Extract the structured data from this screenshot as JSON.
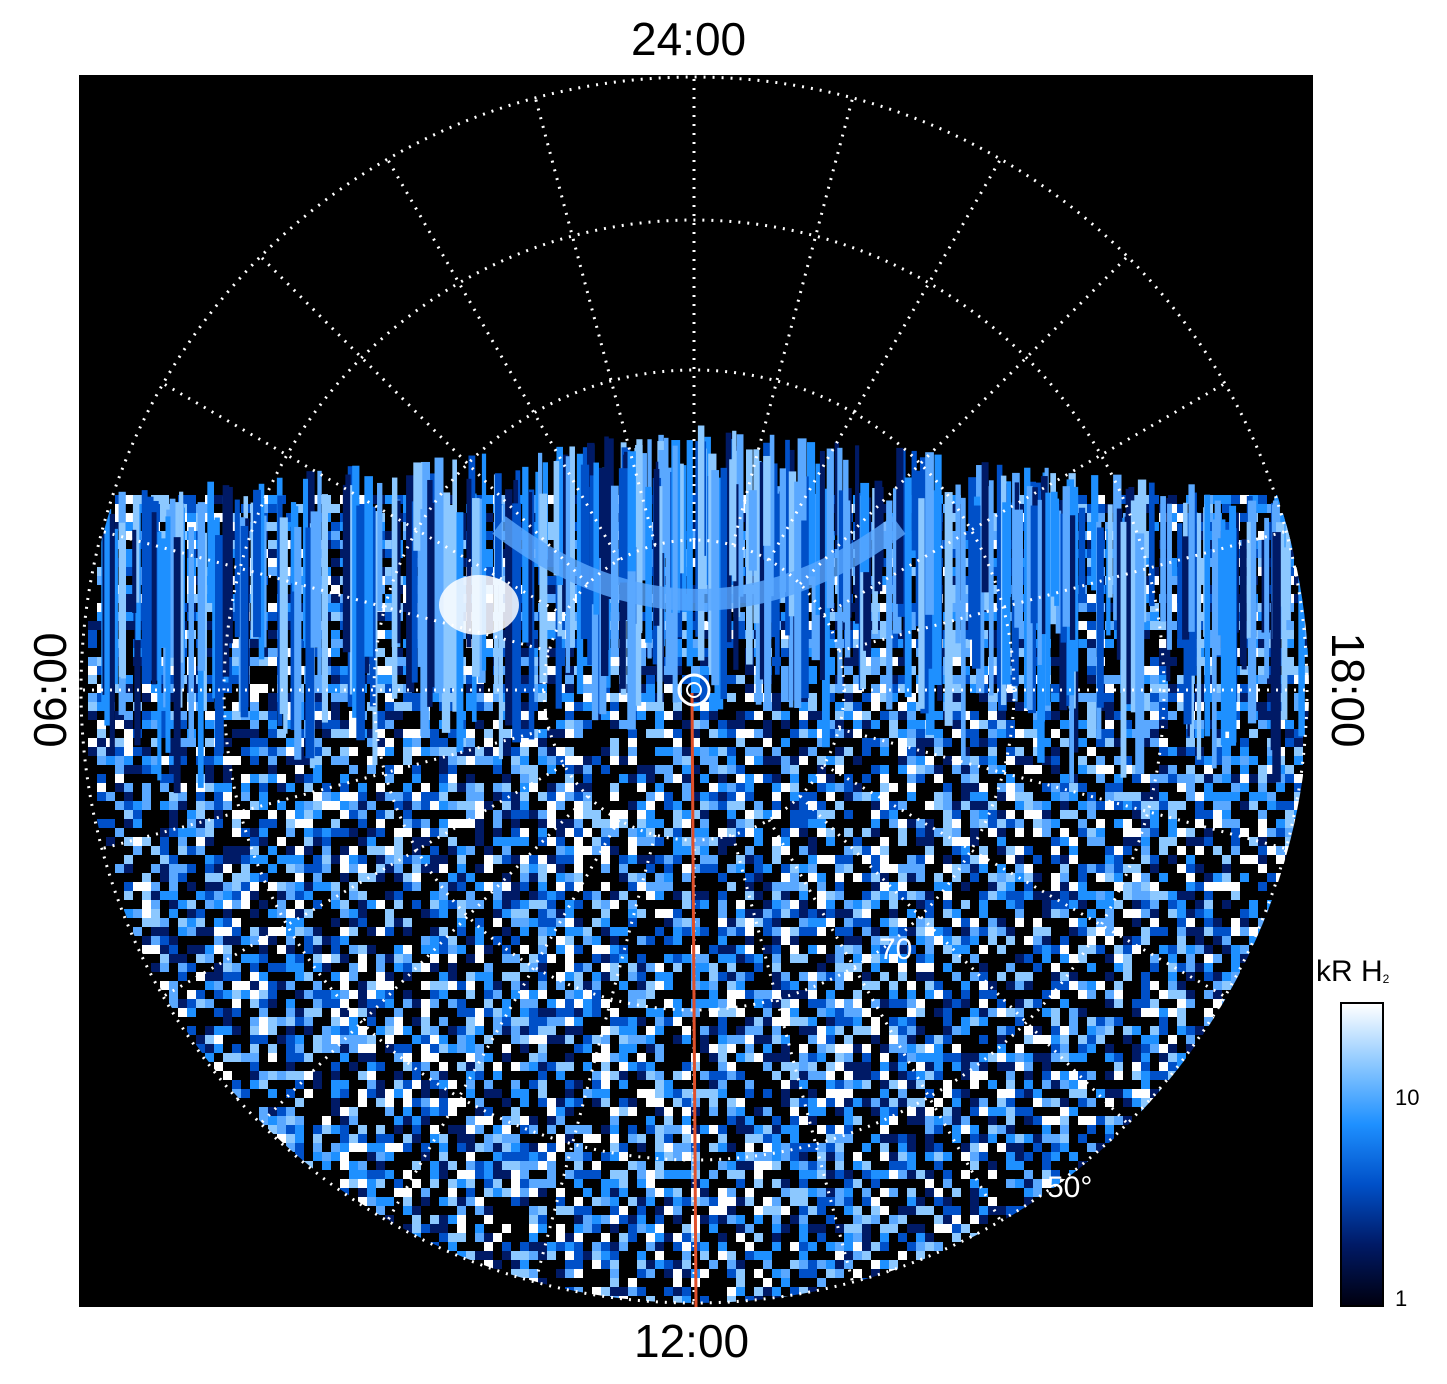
{
  "local_time_labels": {
    "top": "24:00",
    "bottom": "12:00",
    "left": "06:00",
    "right": "18:00"
  },
  "latitude_labels": {
    "inner": "70",
    "outer": "50°"
  },
  "colorbar": {
    "unit_main": "kR H",
    "unit_sub": "2",
    "scale": "log",
    "ticks": [
      "10",
      "1"
    ],
    "colors": [
      "#000010",
      "#001a66",
      "#0050c8",
      "#1e90ff",
      "#8cc8ff",
      "#ffffff"
    ]
  },
  "colors": {
    "background": "#000000",
    "grid": "#ffffff",
    "sun_line": "#e0502a"
  },
  "icons": [
    "pole-marker-icon"
  ]
}
